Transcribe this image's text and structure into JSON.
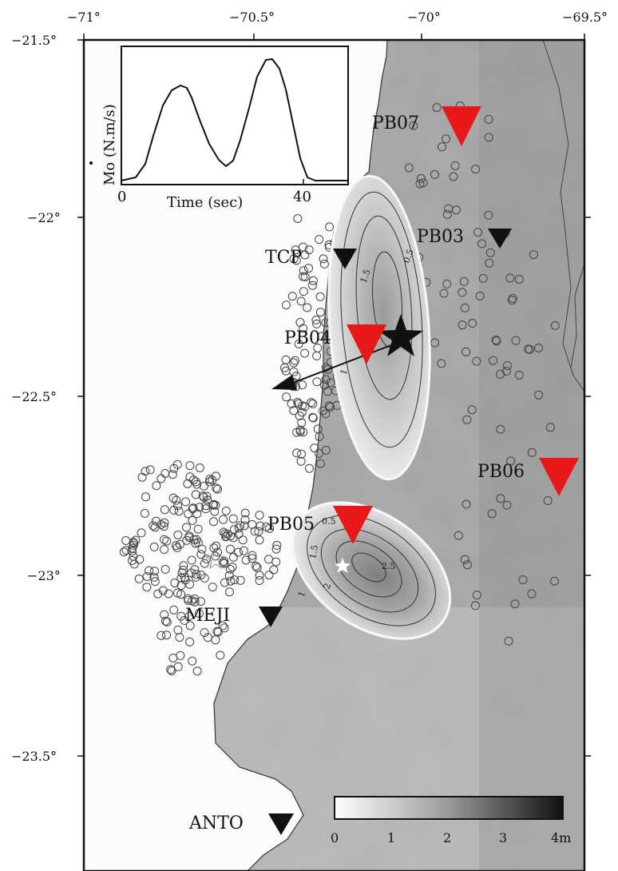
{
  "map": {
    "longitude_ticks": [
      "−71°",
      "−70.5°",
      "−70°",
      "−69.5°"
    ],
    "latitude_ticks": [
      "−21.5°",
      "−22°",
      "−22.5°",
      "−23°",
      "−23.5°"
    ],
    "stations": [
      {
        "name": "PB07",
        "color": "#e81818"
      },
      {
        "name": "PB03",
        "color": "#111111"
      },
      {
        "name": "TCP",
        "color": "#111111"
      },
      {
        "name": "PB04",
        "color": "#e81818"
      },
      {
        "name": "PB06",
        "color": "#e81818"
      },
      {
        "name": "PB05",
        "color": "#e81818"
      },
      {
        "name": "MEJI",
        "color": "#111111"
      },
      {
        "name": "ANTO",
        "color": "#111111"
      }
    ],
    "north_patch_contours": [
      "0.5",
      "1.5",
      "1"
    ],
    "south_patch_contours": [
      "0.5",
      "1.5",
      "2.5",
      "2",
      "1"
    ]
  },
  "inset": {
    "ylabel": "Mo (N.m/s)",
    "xlabel": "Time (sec)",
    "x_ticks": [
      "0",
      "40"
    ]
  },
  "colorbar": {
    "ticks": [
      "0",
      "1",
      "2",
      "3",
      "4m"
    ],
    "range": [
      0,
      4
    ]
  },
  "colors": {
    "red_station": "#e81818",
    "black_station": "#111111",
    "ocean": "#fbfbfb"
  }
}
